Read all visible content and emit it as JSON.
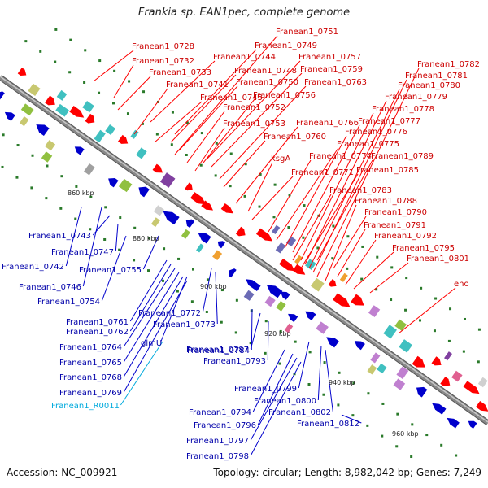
{
  "title": "Frankia sp. EAN1pec, complete genome",
  "footer": {
    "accession": "Accession: NC_009921",
    "summary": "Topology: circular; Length: 8,982,042 bp; Genes: 7,249"
  },
  "colors": {
    "plus_strand": "#ff0000",
    "minus_strand": "#0000cc",
    "rna": "#00aadd",
    "backbone": "#888888",
    "tick": "#2a7a2a"
  },
  "kbp_marks": [
    "860 kbp",
    "880 kbp",
    "900 kbp",
    "920 kbp",
    "940 kbp",
    "960 kbp"
  ],
  "plus_labels": [
    "Franean1_0728",
    "Franean1_0732",
    "Franean1_0733",
    "Franean1_0741",
    "Franean1_0744",
    "Franean1_0745",
    "Franean1_0748",
    "Franean1_0749",
    "Franean1_0750",
    "Franean1_0751",
    "Franean1_0752",
    "Franean1_0753",
    "Franean1_0756",
    "Franean1_0757",
    "Franean1_0759",
    "Franean1_0760",
    "Franean1_0763",
    "Franean1_0766",
    "ksgA",
    "Franean1_0771",
    "Franean1_0774",
    "Franean1_0775",
    "Franean1_0776",
    "Franean1_0777",
    "Franean1_0778",
    "Franean1_0779",
    "Franean1_0780",
    "Franean1_0781",
    "Franean1_0782",
    "Franean1_0783",
    "Franean1_0785",
    "Franean1_0788",
    "Franean1_0789",
    "Franean1_0790",
    "Franean1_0791",
    "Franean1_0792",
    "Franean1_0795",
    "Franean1_0801",
    "eno"
  ],
  "minus_labels": [
    "Franean1_0742",
    "Franean1_0743",
    "Franean1_0746",
    "Franean1_0747",
    "Franean1_0754",
    "Franean1_0755",
    "Franean1_0761",
    "Franean1_0762",
    "Franean1_0764",
    "Franean1_0765",
    "Franean1_0768",
    "Franean1_0769",
    "Franean1_R0011",
    "glmU",
    "Franean1_0772",
    "Franean1_0773",
    "Franean1_0784",
    "Franean1_0787",
    "Franean1_0793",
    "Franean1_0794",
    "Franean1_0796",
    "Franean1_0797",
    "Franean1_0798",
    "Franean1_0799",
    "Franean1_0800",
    "Franean1_0802",
    "Franean1_0812"
  ]
}
